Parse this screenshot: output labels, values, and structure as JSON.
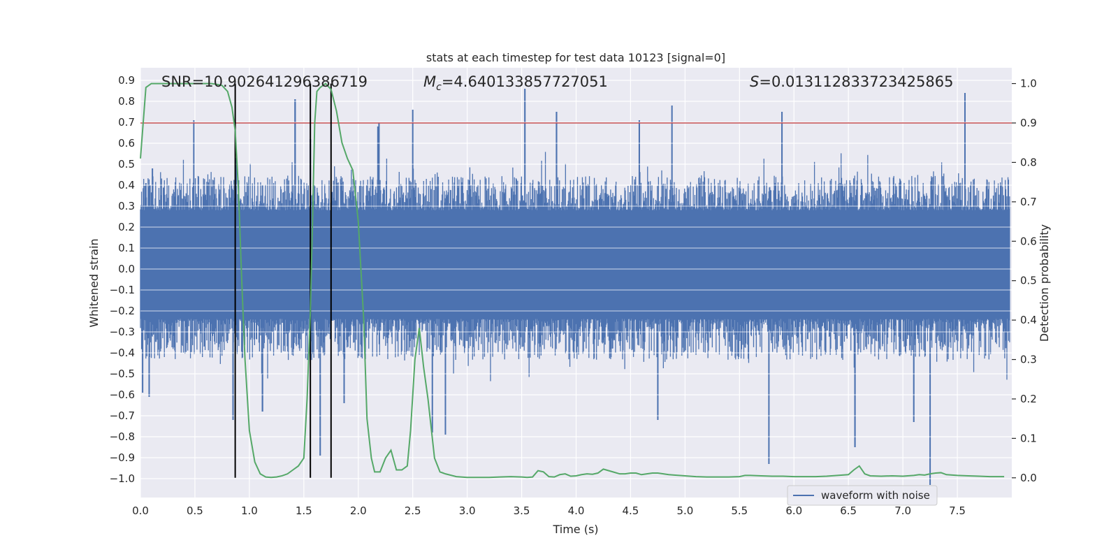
{
  "chart_data": {
    "type": "line",
    "title": "stats at each timestep for test data 10123 [signal=0]",
    "xlabel": "Time (s)",
    "ylabel_left": "Whitened strain",
    "ylabel_right": "Detection probability",
    "xlim": [
      0.0,
      8.0
    ],
    "ylim_left": [
      -1.09,
      0.96
    ],
    "ylim_right": [
      -0.05,
      1.04
    ],
    "xticks": [
      "0.0",
      "0.5",
      "1.0",
      "1.5",
      "2.0",
      "2.5",
      "3.0",
      "3.5",
      "4.0",
      "4.5",
      "5.0",
      "5.5",
      "6.0",
      "6.5",
      "7.0",
      "7.5"
    ],
    "yticks_left": [
      "0.9",
      "0.8",
      "0.7",
      "0.6",
      "0.5",
      "0.4",
      "0.3",
      "0.2",
      "0.1",
      "0.0",
      "-0.1",
      "-0.2",
      "-0.3",
      "-0.4",
      "-0.5",
      "-0.6",
      "-0.7",
      "-0.8",
      "-0.9",
      "-1.0"
    ],
    "yticks_right": [
      "1.0",
      "0.9",
      "0.8",
      "0.7",
      "0.6",
      "0.5",
      "0.4",
      "0.3",
      "0.2",
      "0.1",
      "0.0"
    ],
    "grid": true,
    "legend": {
      "location": "lower-right",
      "entries": [
        "waveform with noise"
      ]
    },
    "colors": {
      "waveform": "#4c72b0",
      "probability": "#55a868",
      "threshold": "#c44e52",
      "markers": "#000000",
      "background": "#eaeaf2"
    },
    "annotations": {
      "snr": "SNR=10.902641296386719",
      "mc": "=4.640133857727051",
      "s": "=0.013112833723425865"
    },
    "threshold": 0.9,
    "vertical_lines_x": [
      0.87,
      1.56,
      1.75
    ],
    "series": [
      {
        "name": "waveform with noise",
        "axis": "left",
        "x_range": [
          0.0,
          7.98
        ],
        "envelope": {
          "typical_max": 0.33,
          "typical_min": -0.28,
          "peaks": [
            {
              "x": 0.05,
              "y": 0.41
            },
            {
              "x": 0.11,
              "y": 0.48
            },
            {
              "x": 0.49,
              "y": 0.71
            },
            {
              "x": 0.88,
              "y": 0.53
            },
            {
              "x": 1.42,
              "y": 0.81
            },
            {
              "x": 1.56,
              "y": 0.62
            },
            {
              "x": 2.18,
              "y": 0.68
            },
            {
              "x": 2.19,
              "y": 0.7
            },
            {
              "x": 2.5,
              "y": 0.76
            },
            {
              "x": 3.53,
              "y": 0.86
            },
            {
              "x": 3.82,
              "y": 0.75
            },
            {
              "x": 4.58,
              "y": 0.71
            },
            {
              "x": 4.88,
              "y": 0.78
            },
            {
              "x": 5.89,
              "y": 0.75
            },
            {
              "x": 7.57,
              "y": 0.84
            }
          ],
          "troughs": [
            {
              "x": 0.02,
              "y": -0.59
            },
            {
              "x": 0.08,
              "y": -0.61
            },
            {
              "x": 0.85,
              "y": -0.72
            },
            {
              "x": 1.12,
              "y": -0.68
            },
            {
              "x": 1.65,
              "y": -0.89
            },
            {
              "x": 1.87,
              "y": -0.64
            },
            {
              "x": 2.68,
              "y": -0.78
            },
            {
              "x": 2.8,
              "y": -0.79
            },
            {
              "x": 4.75,
              "y": -0.72
            },
            {
              "x": 5.77,
              "y": -0.93
            },
            {
              "x": 6.56,
              "y": -0.85
            },
            {
              "x": 7.1,
              "y": -0.73
            },
            {
              "x": 7.25,
              "y": -1.03
            }
          ]
        }
      },
      {
        "name": "detection probability",
        "axis": "right",
        "x": [
          0.0,
          0.05,
          0.1,
          0.2,
          0.3,
          0.4,
          0.5,
          0.6,
          0.65,
          0.7,
          0.75,
          0.8,
          0.84,
          0.87,
          0.9,
          0.93,
          0.96,
          1.0,
          1.05,
          1.1,
          1.15,
          1.2,
          1.25,
          1.3,
          1.35,
          1.4,
          1.45,
          1.5,
          1.53,
          1.56,
          1.58,
          1.6,
          1.62,
          1.65,
          1.7,
          1.75,
          1.8,
          1.85,
          1.9,
          1.95,
          2.0,
          2.05,
          2.08,
          2.12,
          2.15,
          2.2,
          2.25,
          2.3,
          2.35,
          2.4,
          2.45,
          2.48,
          2.52,
          2.56,
          2.6,
          2.64,
          2.7,
          2.75,
          2.8,
          2.9,
          3.0,
          3.1,
          3.2,
          3.3,
          3.4,
          3.5,
          3.55,
          3.6,
          3.65,
          3.7,
          3.75,
          3.8,
          3.85,
          3.9,
          3.95,
          4.0,
          4.05,
          4.1,
          4.15,
          4.2,
          4.25,
          4.3,
          4.35,
          4.4,
          4.45,
          4.5,
          4.55,
          4.6,
          4.65,
          4.7,
          4.75,
          4.8,
          4.85,
          4.9,
          5.0,
          5.1,
          5.2,
          5.3,
          5.4,
          5.5,
          5.55,
          5.6,
          5.7,
          5.8,
          5.9,
          6.0,
          6.1,
          6.2,
          6.3,
          6.4,
          6.5,
          6.55,
          6.6,
          6.65,
          6.7,
          6.8,
          6.9,
          7.0,
          7.1,
          7.15,
          7.2,
          7.25,
          7.3,
          7.35,
          7.4,
          7.5,
          7.6,
          7.7,
          7.8,
          7.93
        ],
        "y": [
          0.81,
          0.99,
          1.0,
          1.0,
          1.0,
          1.0,
          1.0,
          1.0,
          1.0,
          0.998,
          0.995,
          0.98,
          0.94,
          0.88,
          0.73,
          0.5,
          0.3,
          0.12,
          0.04,
          0.01,
          0.002,
          0.001,
          0.002,
          0.005,
          0.01,
          0.02,
          0.03,
          0.05,
          0.2,
          0.42,
          0.65,
          0.9,
          0.98,
          0.99,
          1.0,
          0.985,
          0.93,
          0.85,
          0.81,
          0.78,
          0.65,
          0.4,
          0.15,
          0.05,
          0.015,
          0.015,
          0.05,
          0.07,
          0.02,
          0.02,
          0.03,
          0.12,
          0.3,
          0.38,
          0.28,
          0.2,
          0.05,
          0.015,
          0.01,
          0.003,
          0.001,
          0.001,
          0.001,
          0.002,
          0.003,
          0.002,
          0.001,
          0.002,
          0.018,
          0.015,
          0.003,
          0.002,
          0.008,
          0.01,
          0.004,
          0.005,
          0.008,
          0.01,
          0.009,
          0.012,
          0.022,
          0.018,
          0.014,
          0.01,
          0.01,
          0.012,
          0.012,
          0.008,
          0.01,
          0.012,
          0.012,
          0.01,
          0.008,
          0.007,
          0.005,
          0.003,
          0.002,
          0.002,
          0.002,
          0.003,
          0.006,
          0.006,
          0.005,
          0.004,
          0.004,
          0.003,
          0.003,
          0.003,
          0.004,
          0.006,
          0.008,
          0.02,
          0.03,
          0.01,
          0.005,
          0.004,
          0.005,
          0.004,
          0.006,
          0.008,
          0.007,
          0.01,
          0.012,
          0.013,
          0.008,
          0.006,
          0.005,
          0.004,
          0.003,
          0.003
        ]
      }
    ]
  }
}
